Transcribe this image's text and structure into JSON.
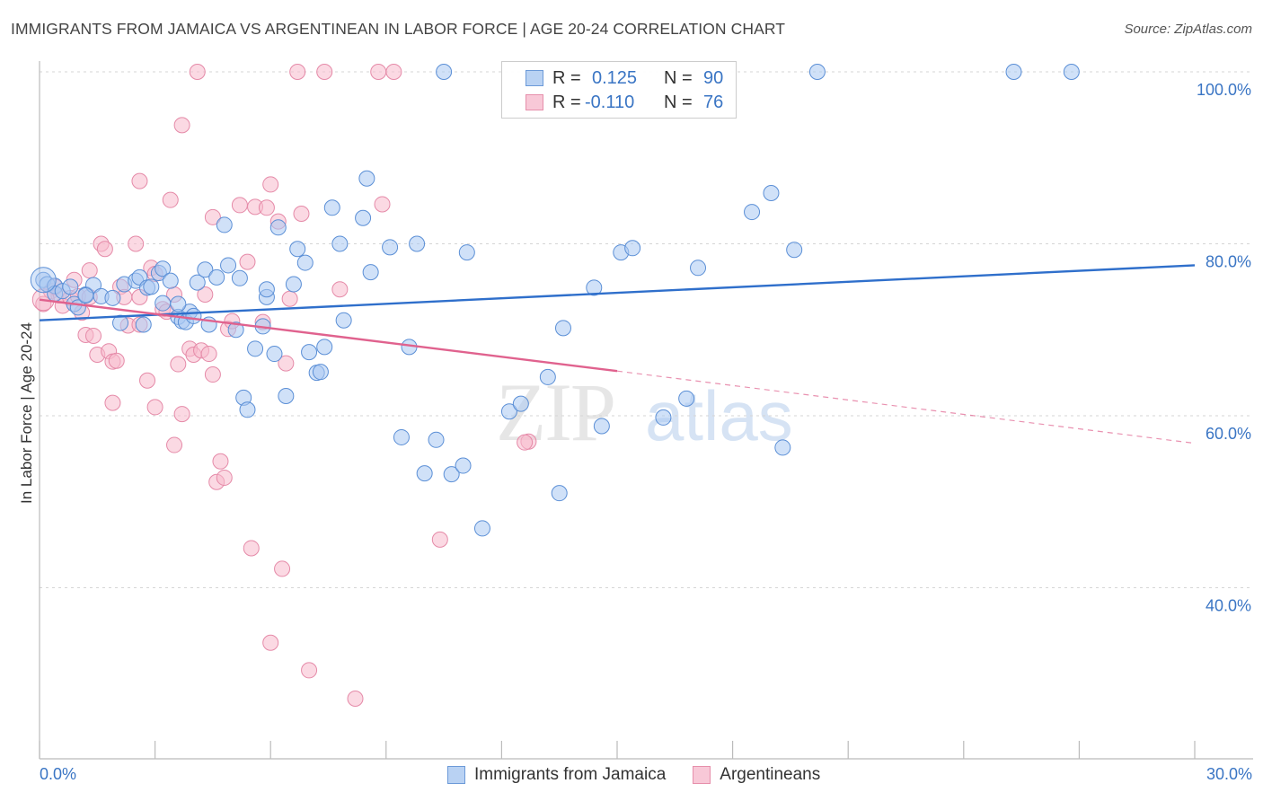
{
  "header": {
    "title": "IMMIGRANTS FROM JAMAICA VS ARGENTINEAN IN LABOR FORCE | AGE 20-24 CORRELATION CHART",
    "source": "Source: ZipAtlas.com"
  },
  "watermark": {
    "zip": "ZIP",
    "atlas": "atlas"
  },
  "legend": {
    "rows": [
      {
        "r_label": "R =",
        "r_value": "0.125",
        "n_label": "N =",
        "n_value": "90"
      },
      {
        "r_label": "R =",
        "r_value": "-0.110",
        "n_label": "N =",
        "n_value": "76"
      }
    ]
  },
  "bottom_legend": {
    "items": [
      {
        "label": "Immigrants from Jamaica"
      },
      {
        "label": "Argentineans"
      }
    ]
  },
  "colors": {
    "blue_fill": "#a9c8f2",
    "blue_stroke": "#5b8fd6",
    "blue_line": "#2f6fcb",
    "pink_fill": "#f7b9cc",
    "pink_stroke": "#e58aa8",
    "pink_line": "#e0628e",
    "tick_text": "#3a75c4",
    "grid": "#d5d5d5"
  },
  "chart_data": {
    "type": "scatter",
    "title": "IMMIGRANTS FROM JAMAICA VS ARGENTINEAN IN LABOR FORCE | AGE 20-24 CORRELATION CHART",
    "xlabel": "",
    "ylabel": "In Labor Force | Age 20-24",
    "xlim": [
      0,
      30
    ],
    "ylim": [
      20,
      100
    ],
    "x_tick_labels": [
      "0.0%",
      "30.0%"
    ],
    "y_ticks": [
      100,
      80,
      60,
      40
    ],
    "y_tick_labels": [
      "100.0%",
      "80.0%",
      "60.0%",
      "40.0%"
    ],
    "grid": true,
    "legend_position": "top-center",
    "series": [
      {
        "name": "Immigrants from Jamaica",
        "color": "#a9c8f2",
        "trend": {
          "x": [
            0,
            30
          ],
          "y": [
            71.1,
            77.5
          ],
          "style": "solid"
        },
        "points": [
          [
            0.1,
            75.8
          ],
          [
            0.2,
            75.3
          ],
          [
            0.4,
            75.1
          ],
          [
            0.4,
            74.2
          ],
          [
            0.6,
            74.5
          ],
          [
            0.8,
            75.0
          ],
          [
            0.9,
            73.0
          ],
          [
            1.0,
            72.6
          ],
          [
            1.2,
            74.1
          ],
          [
            1.4,
            75.2
          ],
          [
            1.6,
            73.9
          ],
          [
            1.9,
            73.7
          ],
          [
            2.1,
            70.8
          ],
          [
            2.2,
            75.3
          ],
          [
            2.5,
            75.7
          ],
          [
            2.6,
            76.1
          ],
          [
            2.7,
            70.6
          ],
          [
            2.8,
            74.9
          ],
          [
            3.1,
            76.6
          ],
          [
            3.2,
            77.1
          ],
          [
            3.2,
            73.1
          ],
          [
            3.4,
            75.7
          ],
          [
            3.6,
            71.5
          ],
          [
            3.7,
            71.0
          ],
          [
            3.8,
            70.9
          ],
          [
            3.9,
            72.1
          ],
          [
            4.0,
            71.6
          ],
          [
            4.1,
            75.5
          ],
          [
            4.3,
            77.0
          ],
          [
            4.4,
            70.6
          ],
          [
            4.6,
            76.1
          ],
          [
            4.8,
            82.2
          ],
          [
            4.9,
            77.5
          ],
          [
            5.1,
            70.0
          ],
          [
            5.2,
            76.0
          ],
          [
            5.3,
            62.1
          ],
          [
            5.4,
            60.7
          ],
          [
            5.6,
            67.8
          ],
          [
            5.8,
            70.4
          ],
          [
            5.9,
            73.8
          ],
          [
            5.9,
            74.7
          ],
          [
            6.1,
            67.2
          ],
          [
            6.2,
            81.9
          ],
          [
            6.4,
            62.3
          ],
          [
            6.6,
            75.3
          ],
          [
            6.7,
            79.4
          ],
          [
            6.9,
            77.8
          ],
          [
            7.0,
            67.4
          ],
          [
            7.2,
            65.0
          ],
          [
            7.3,
            65.1
          ],
          [
            7.4,
            68.0
          ],
          [
            7.6,
            84.2
          ],
          [
            7.8,
            80.0
          ],
          [
            7.9,
            71.1
          ],
          [
            8.4,
            83.0
          ],
          [
            8.5,
            87.6
          ],
          [
            8.6,
            76.7
          ],
          [
            9.1,
            79.6
          ],
          [
            9.4,
            57.5
          ],
          [
            9.6,
            68.0
          ],
          [
            9.8,
            80.0
          ],
          [
            10.0,
            53.3
          ],
          [
            10.3,
            57.2
          ],
          [
            10.5,
            100.0
          ],
          [
            10.7,
            53.2
          ],
          [
            11.0,
            54.2
          ],
          [
            11.1,
            79.0
          ],
          [
            11.5,
            46.9
          ],
          [
            12.2,
            60.5
          ],
          [
            12.5,
            61.4
          ],
          [
            13.2,
            64.5
          ],
          [
            13.5,
            51.0
          ],
          [
            13.6,
            70.2
          ],
          [
            14.4,
            74.9
          ],
          [
            14.6,
            58.8
          ],
          [
            15.1,
            79.0
          ],
          [
            15.4,
            79.5
          ],
          [
            16.2,
            59.8
          ],
          [
            16.8,
            62.0
          ],
          [
            17.1,
            77.2
          ],
          [
            18.5,
            83.7
          ],
          [
            19.0,
            85.9
          ],
          [
            19.3,
            56.3
          ],
          [
            19.6,
            79.3
          ],
          [
            20.2,
            100.0
          ],
          [
            25.3,
            100.0
          ],
          [
            26.8,
            100.0
          ],
          [
            1.2,
            74.0
          ],
          [
            2.9,
            75.0
          ],
          [
            3.6,
            73.0
          ]
        ]
      },
      {
        "name": "Argentineans",
        "color": "#f7b9cc",
        "trend": {
          "x": [
            0,
            15
          ],
          "y": [
            73.5,
            65.2
          ],
          "style": "solid",
          "dashed_extension": {
            "x": [
              15,
              30
            ],
            "y": [
              65.2,
              56.8
            ]
          }
        },
        "points": [
          [
            0.1,
            73.0
          ],
          [
            0.3,
            74.5
          ],
          [
            0.5,
            74.0
          ],
          [
            0.6,
            72.8
          ],
          [
            0.8,
            73.7
          ],
          [
            0.9,
            75.8
          ],
          [
            1.0,
            73.9
          ],
          [
            1.1,
            72.0
          ],
          [
            1.3,
            76.9
          ],
          [
            1.2,
            69.4
          ],
          [
            1.4,
            69.3
          ],
          [
            1.5,
            67.1
          ],
          [
            1.6,
            80.0
          ],
          [
            1.7,
            79.4
          ],
          [
            1.8,
            67.5
          ],
          [
            1.9,
            66.3
          ],
          [
            1.9,
            61.5
          ],
          [
            2.0,
            66.4
          ],
          [
            2.1,
            75.0
          ],
          [
            2.2,
            73.8
          ],
          [
            2.3,
            70.5
          ],
          [
            2.5,
            80.0
          ],
          [
            2.6,
            70.6
          ],
          [
            2.6,
            87.3
          ],
          [
            2.8,
            64.1
          ],
          [
            2.9,
            77.2
          ],
          [
            3.0,
            76.5
          ],
          [
            3.0,
            61.0
          ],
          [
            3.2,
            72.4
          ],
          [
            3.3,
            72.1
          ],
          [
            3.4,
            85.1
          ],
          [
            3.5,
            56.6
          ],
          [
            3.5,
            74.1
          ],
          [
            3.6,
            66.0
          ],
          [
            3.7,
            60.2
          ],
          [
            3.7,
            93.8
          ],
          [
            3.9,
            67.8
          ],
          [
            4.0,
            67.1
          ],
          [
            4.1,
            100.0
          ],
          [
            4.2,
            67.6
          ],
          [
            4.3,
            74.1
          ],
          [
            4.4,
            67.2
          ],
          [
            4.5,
            64.8
          ],
          [
            4.5,
            83.1
          ],
          [
            4.6,
            52.3
          ],
          [
            4.7,
            54.7
          ],
          [
            4.8,
            52.8
          ],
          [
            4.9,
            70.1
          ],
          [
            5.0,
            71.0
          ],
          [
            5.2,
            84.5
          ],
          [
            5.4,
            77.9
          ],
          [
            5.5,
            44.6
          ],
          [
            5.6,
            84.3
          ],
          [
            5.8,
            70.9
          ],
          [
            5.9,
            84.2
          ],
          [
            6.0,
            33.6
          ],
          [
            6.0,
            86.9
          ],
          [
            6.2,
            82.6
          ],
          [
            6.3,
            42.2
          ],
          [
            6.4,
            66.1
          ],
          [
            6.5,
            73.6
          ],
          [
            6.7,
            100.0
          ],
          [
            6.8,
            83.5
          ],
          [
            7.0,
            30.4
          ],
          [
            7.4,
            100.0
          ],
          [
            7.8,
            74.7
          ],
          [
            8.2,
            27.1
          ],
          [
            8.8,
            100.0
          ],
          [
            8.9,
            84.6
          ],
          [
            9.2,
            100.0
          ],
          [
            10.4,
            45.6
          ],
          [
            12.7,
            57.0
          ],
          [
            12.6,
            56.9
          ],
          [
            0.4,
            75.0
          ],
          [
            1.3,
            73.8
          ],
          [
            2.6,
            73.8
          ]
        ]
      }
    ]
  }
}
